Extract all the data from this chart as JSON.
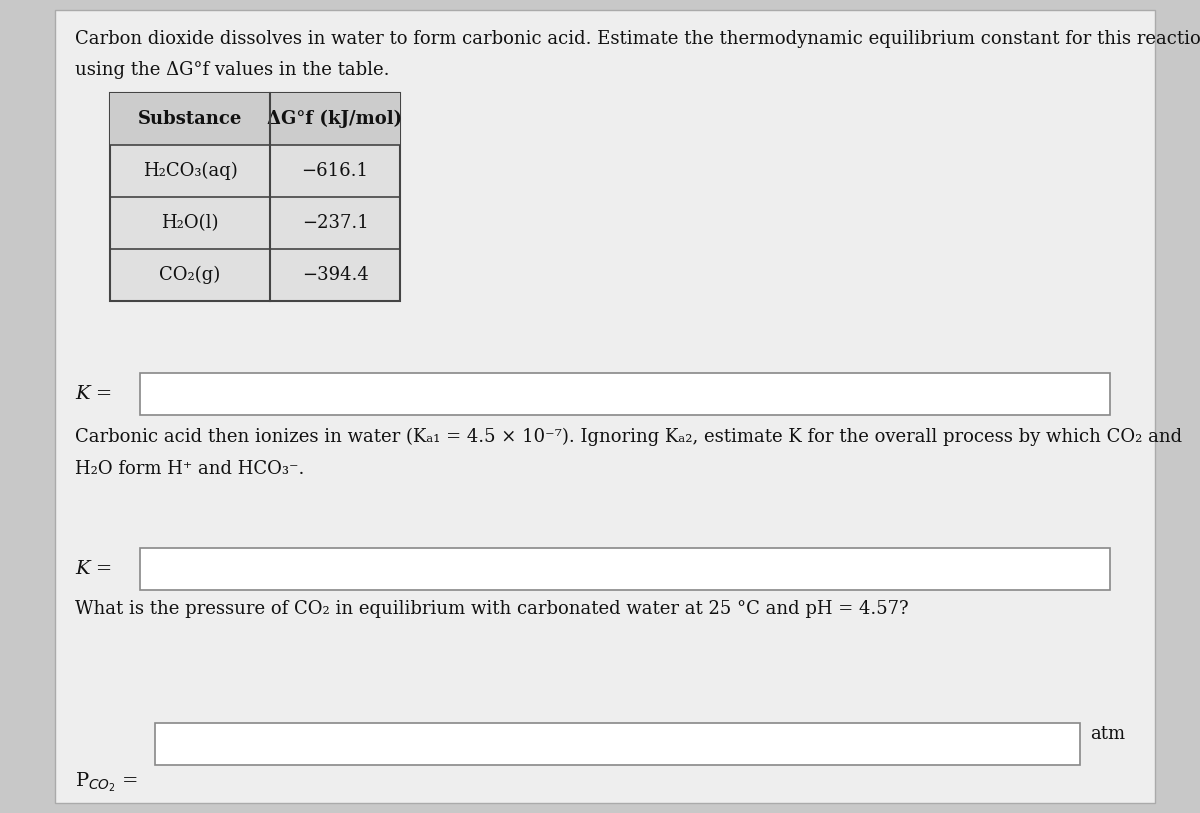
{
  "bg_color": "#c8c8c8",
  "panel_color": "#e8e8e8",
  "input_box_color": "#ffffff",
  "text_color": "#111111",
  "title_text1": "Carbon dioxide dissolves in water to form carbonic acid. Estimate the thermodynamic equilibrium constant for this reaction",
  "title_text2": "using the ΔG°f values in the table.",
  "table_substances": [
    "H₂CO₃(aq)",
    "H₂O(l)",
    "CO₂(g)"
  ],
  "table_values": [
    "−616.1",
    "−237.1",
    "−394.4"
  ],
  "paragraph2_line1": "Carbonic acid then ionizes in water (Kₐ₁ = 4.5 × 10⁻⁷). Ignoring Kₐ₂, estimate K for the overall process by which CO₂ and",
  "paragraph2_line2": "H₂O form H⁺ and HCO₃⁻.",
  "paragraph3": "What is the pressure of CO₂ in equilibrium with carbonated water at 25 °C and pH = 4.57?",
  "atm_label": "atm"
}
